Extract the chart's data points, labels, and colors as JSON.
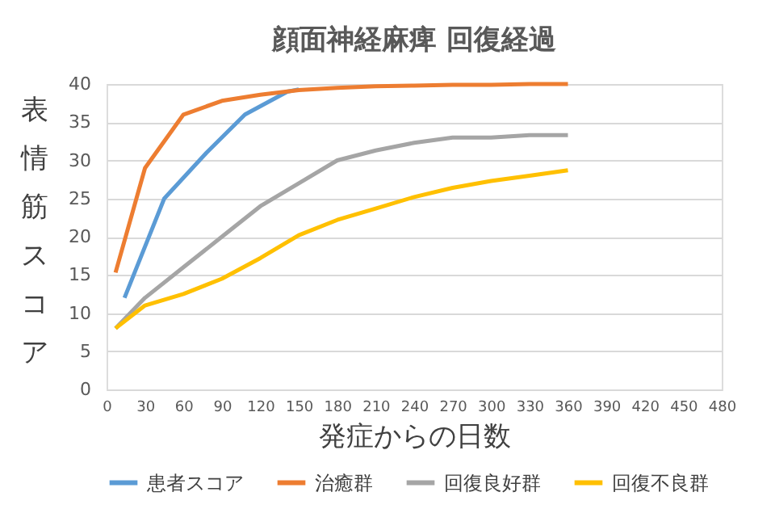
{
  "chart_data": {
    "type": "line",
    "title": "顔面神経麻痺  回復経過",
    "xlabel": "発症からの日数",
    "ylabel": "表情筋スコア",
    "xlim": [
      0,
      480
    ],
    "xticks": [
      0,
      30,
      60,
      90,
      120,
      150,
      180,
      210,
      240,
      270,
      300,
      330,
      360,
      390,
      420,
      450,
      480
    ],
    "ylim": [
      0,
      40
    ],
    "yticks": [
      0,
      5,
      10,
      15,
      20,
      25,
      30,
      35,
      40
    ],
    "grid": "y",
    "legend": "bottom",
    "marker": "none",
    "line_style": "solid",
    "series": [
      {
        "name": "患者スコア",
        "color": "#5b9bd5",
        "x": [
          14,
          45,
          78,
          108,
          141,
          150
        ],
        "values": [
          12,
          25,
          31,
          36,
          39,
          39.3
        ]
      },
      {
        "name": "治癒群",
        "color": "#ed7d31",
        "x": [
          7,
          30,
          60,
          90,
          120,
          150,
          180,
          210,
          240,
          270,
          300,
          330,
          360
        ],
        "values": [
          15.3,
          29,
          36,
          37.8,
          38.6,
          39.2,
          39.5,
          39.7,
          39.8,
          39.9,
          39.9,
          40,
          40
        ]
      },
      {
        "name": "回復良好群",
        "color": "#a5a5a5",
        "x": [
          7,
          30,
          60,
          90,
          120,
          150,
          180,
          210,
          240,
          270,
          300,
          330,
          360
        ],
        "values": [
          8,
          12,
          16,
          20,
          24,
          27,
          30,
          31.3,
          32.3,
          33,
          33,
          33.3,
          33.3
        ]
      },
      {
        "name": "回復不良群",
        "color": "#ffc000",
        "x": [
          7,
          30,
          60,
          90,
          120,
          150,
          180,
          210,
          240,
          270,
          300,
          330,
          360
        ],
        "values": [
          8,
          11,
          12.5,
          14.5,
          17.2,
          20.2,
          22.2,
          23.7,
          25.2,
          26.4,
          27.3,
          28,
          28.7
        ]
      }
    ]
  }
}
